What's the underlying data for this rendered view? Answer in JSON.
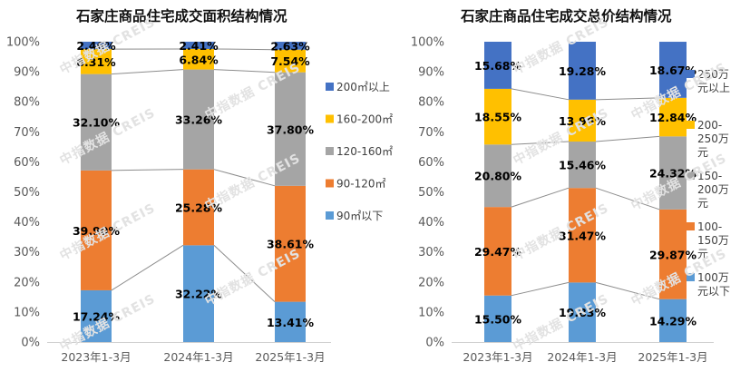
{
  "watermark": "中指数据 CREIS",
  "charts": [
    {
      "title": "石家庄商品住宅成交面积结构情况",
      "chart_data": {
        "type": "bar",
        "stacked": true,
        "percent": true,
        "title": "石家庄商品住宅成交面积结构情况",
        "categories": [
          "2023年1-3月",
          "2024年1-3月",
          "2025年1-3月"
        ],
        "y_ticks": [
          "0%",
          "10%",
          "20%",
          "30%",
          "40%",
          "50%",
          "60%",
          "70%",
          "80%",
          "90%",
          "100%"
        ],
        "ylim": [
          0,
          100
        ],
        "legend_position": "right",
        "series": [
          {
            "name": "90㎡以下",
            "color": "#5B9BD5",
            "values": [
              17.24,
              32.22,
              13.41
            ],
            "labels": [
              "17.24%",
              "32.22%",
              "13.41%"
            ]
          },
          {
            "name": "90-120㎡",
            "color": "#ED7D31",
            "values": [
              39.9,
              25.28,
              38.61
            ],
            "labels": [
              "39.90%",
              "25.28%",
              "38.61%"
            ]
          },
          {
            "name": "120-160㎡",
            "color": "#A5A5A5",
            "values": [
              32.1,
              33.26,
              37.8
            ],
            "labels": [
              "32.10%",
              "33.26%",
              "37.80%"
            ]
          },
          {
            "name": "160-200㎡",
            "color": "#FFC000",
            "values": [
              8.31,
              6.84,
              7.54
            ],
            "labels": [
              "8.31%",
              "6.84%",
              "7.54%"
            ]
          },
          {
            "name": "200㎡以上",
            "color": "#4472C4",
            "values": [
              2.46,
              2.41,
              2.63
            ],
            "labels": [
              "2.46%",
              "2.41%",
              "2.63%"
            ]
          }
        ]
      }
    },
    {
      "title": "石家庄商品住宅成交总价结构情况",
      "chart_data": {
        "type": "bar",
        "stacked": true,
        "percent": true,
        "title": "石家庄商品住宅成交总价结构情况",
        "categories": [
          "2023年1-3月",
          "2024年1-3月",
          "2025年1-3月"
        ],
        "y_ticks": [
          "0%",
          "10%",
          "20%",
          "30%",
          "40%",
          "50%",
          "60%",
          "70%",
          "80%",
          "90%",
          "100%"
        ],
        "ylim": [
          0,
          100
        ],
        "legend_position": "right",
        "series": [
          {
            "name": "100万元以下",
            "legend_lines": [
              "100万",
              "元以下"
            ],
            "color": "#5B9BD5",
            "values": [
              15.5,
              19.83,
              14.29
            ],
            "labels": [
              "15.50%",
              "19.83%",
              "14.29%"
            ]
          },
          {
            "name": "100-150万元",
            "legend_lines": [
              "100-",
              "150万",
              "元"
            ],
            "color": "#ED7D31",
            "values": [
              29.47,
              31.47,
              29.87
            ],
            "labels": [
              "29.47%",
              "31.47%",
              "29.87%"
            ]
          },
          {
            "name": "150-200万元",
            "legend_lines": [
              "150-",
              "200万",
              "元"
            ],
            "color": "#A5A5A5",
            "values": [
              20.8,
              15.46,
              24.32
            ],
            "labels": [
              "20.80%",
              "15.46%",
              "24.32%"
            ]
          },
          {
            "name": "200-250万元",
            "legend_lines": [
              "200-",
              "250万",
              "元"
            ],
            "color": "#FFC000",
            "values": [
              18.55,
              13.96,
              12.84
            ],
            "labels": [
              "18.55%",
              "13.96%",
              "12.84%"
            ]
          },
          {
            "name": "250万元以上",
            "legend_lines": [
              "250万",
              "元以上"
            ],
            "color": "#4472C4",
            "values": [
              15.68,
              19.28,
              18.67
            ],
            "labels": [
              "15.68%",
              "19.28%",
              "18.67%"
            ]
          }
        ]
      }
    }
  ]
}
